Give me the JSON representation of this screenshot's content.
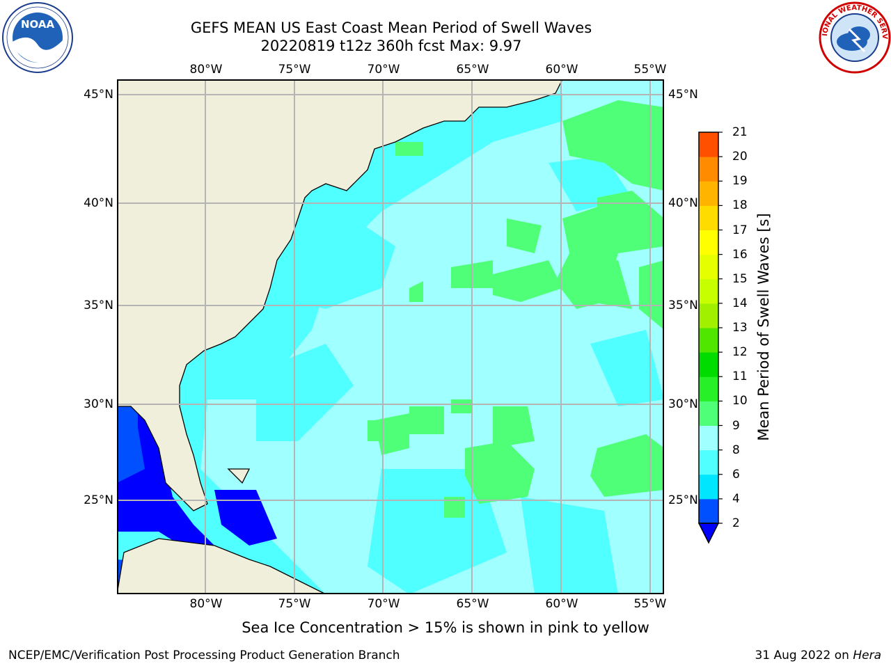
{
  "header": {
    "title_line1": "GEFS MEAN US East Coast Mean Period of Swell Waves",
    "title_line2": "20220819 t12z 360h fcst   Max: 9.97"
  },
  "logos": {
    "left": {
      "icon": "noaa-logo-icon",
      "text": "NOAA"
    },
    "right": {
      "icon": "nws-logo-icon",
      "text": "NATIONAL WEATHER SERVICE"
    }
  },
  "map": {
    "lon_ticks": [
      "80°W",
      "75°W",
      "70°W",
      "65°W",
      "60°W",
      "55°W"
    ],
    "lat_ticks": [
      "45°N",
      "40°N",
      "35°N",
      "30°N",
      "25°N"
    ],
    "lon_range": [
      -85,
      -54.5
    ],
    "lat_range": [
      20.5,
      46
    ],
    "gridlines": true,
    "land_color": "#efefdc"
  },
  "colorbar": {
    "label": "Mean Period of Swell Waves [s]",
    "ticks": [
      "2",
      "4",
      "6",
      "8",
      "9",
      "10",
      "11",
      "12",
      "13",
      "14",
      "15",
      "16",
      "17",
      "18",
      "19",
      "20",
      "21"
    ],
    "colors": [
      "#0050ff",
      "#00e6ff",
      "#50ffff",
      "#a0ffff",
      "#50ff78",
      "#28f028",
      "#00dc00",
      "#50e600",
      "#a0f000",
      "#c8ff00",
      "#e6ff00",
      "#ffff00",
      "#ffdc00",
      "#ffb400",
      "#ff8c00",
      "#ff5000",
      "#ff2800",
      "#ff0000"
    ],
    "under_color": "#0000ff"
  },
  "subtitle": "Sea Ice Concentration > 15% is shown in pink to yellow",
  "footer": {
    "left": "NCEP/EMC/Verification Post Processing Product Generation Branch",
    "right_prefix": "31 Aug 2022 on ",
    "right_host": "Hera"
  }
}
